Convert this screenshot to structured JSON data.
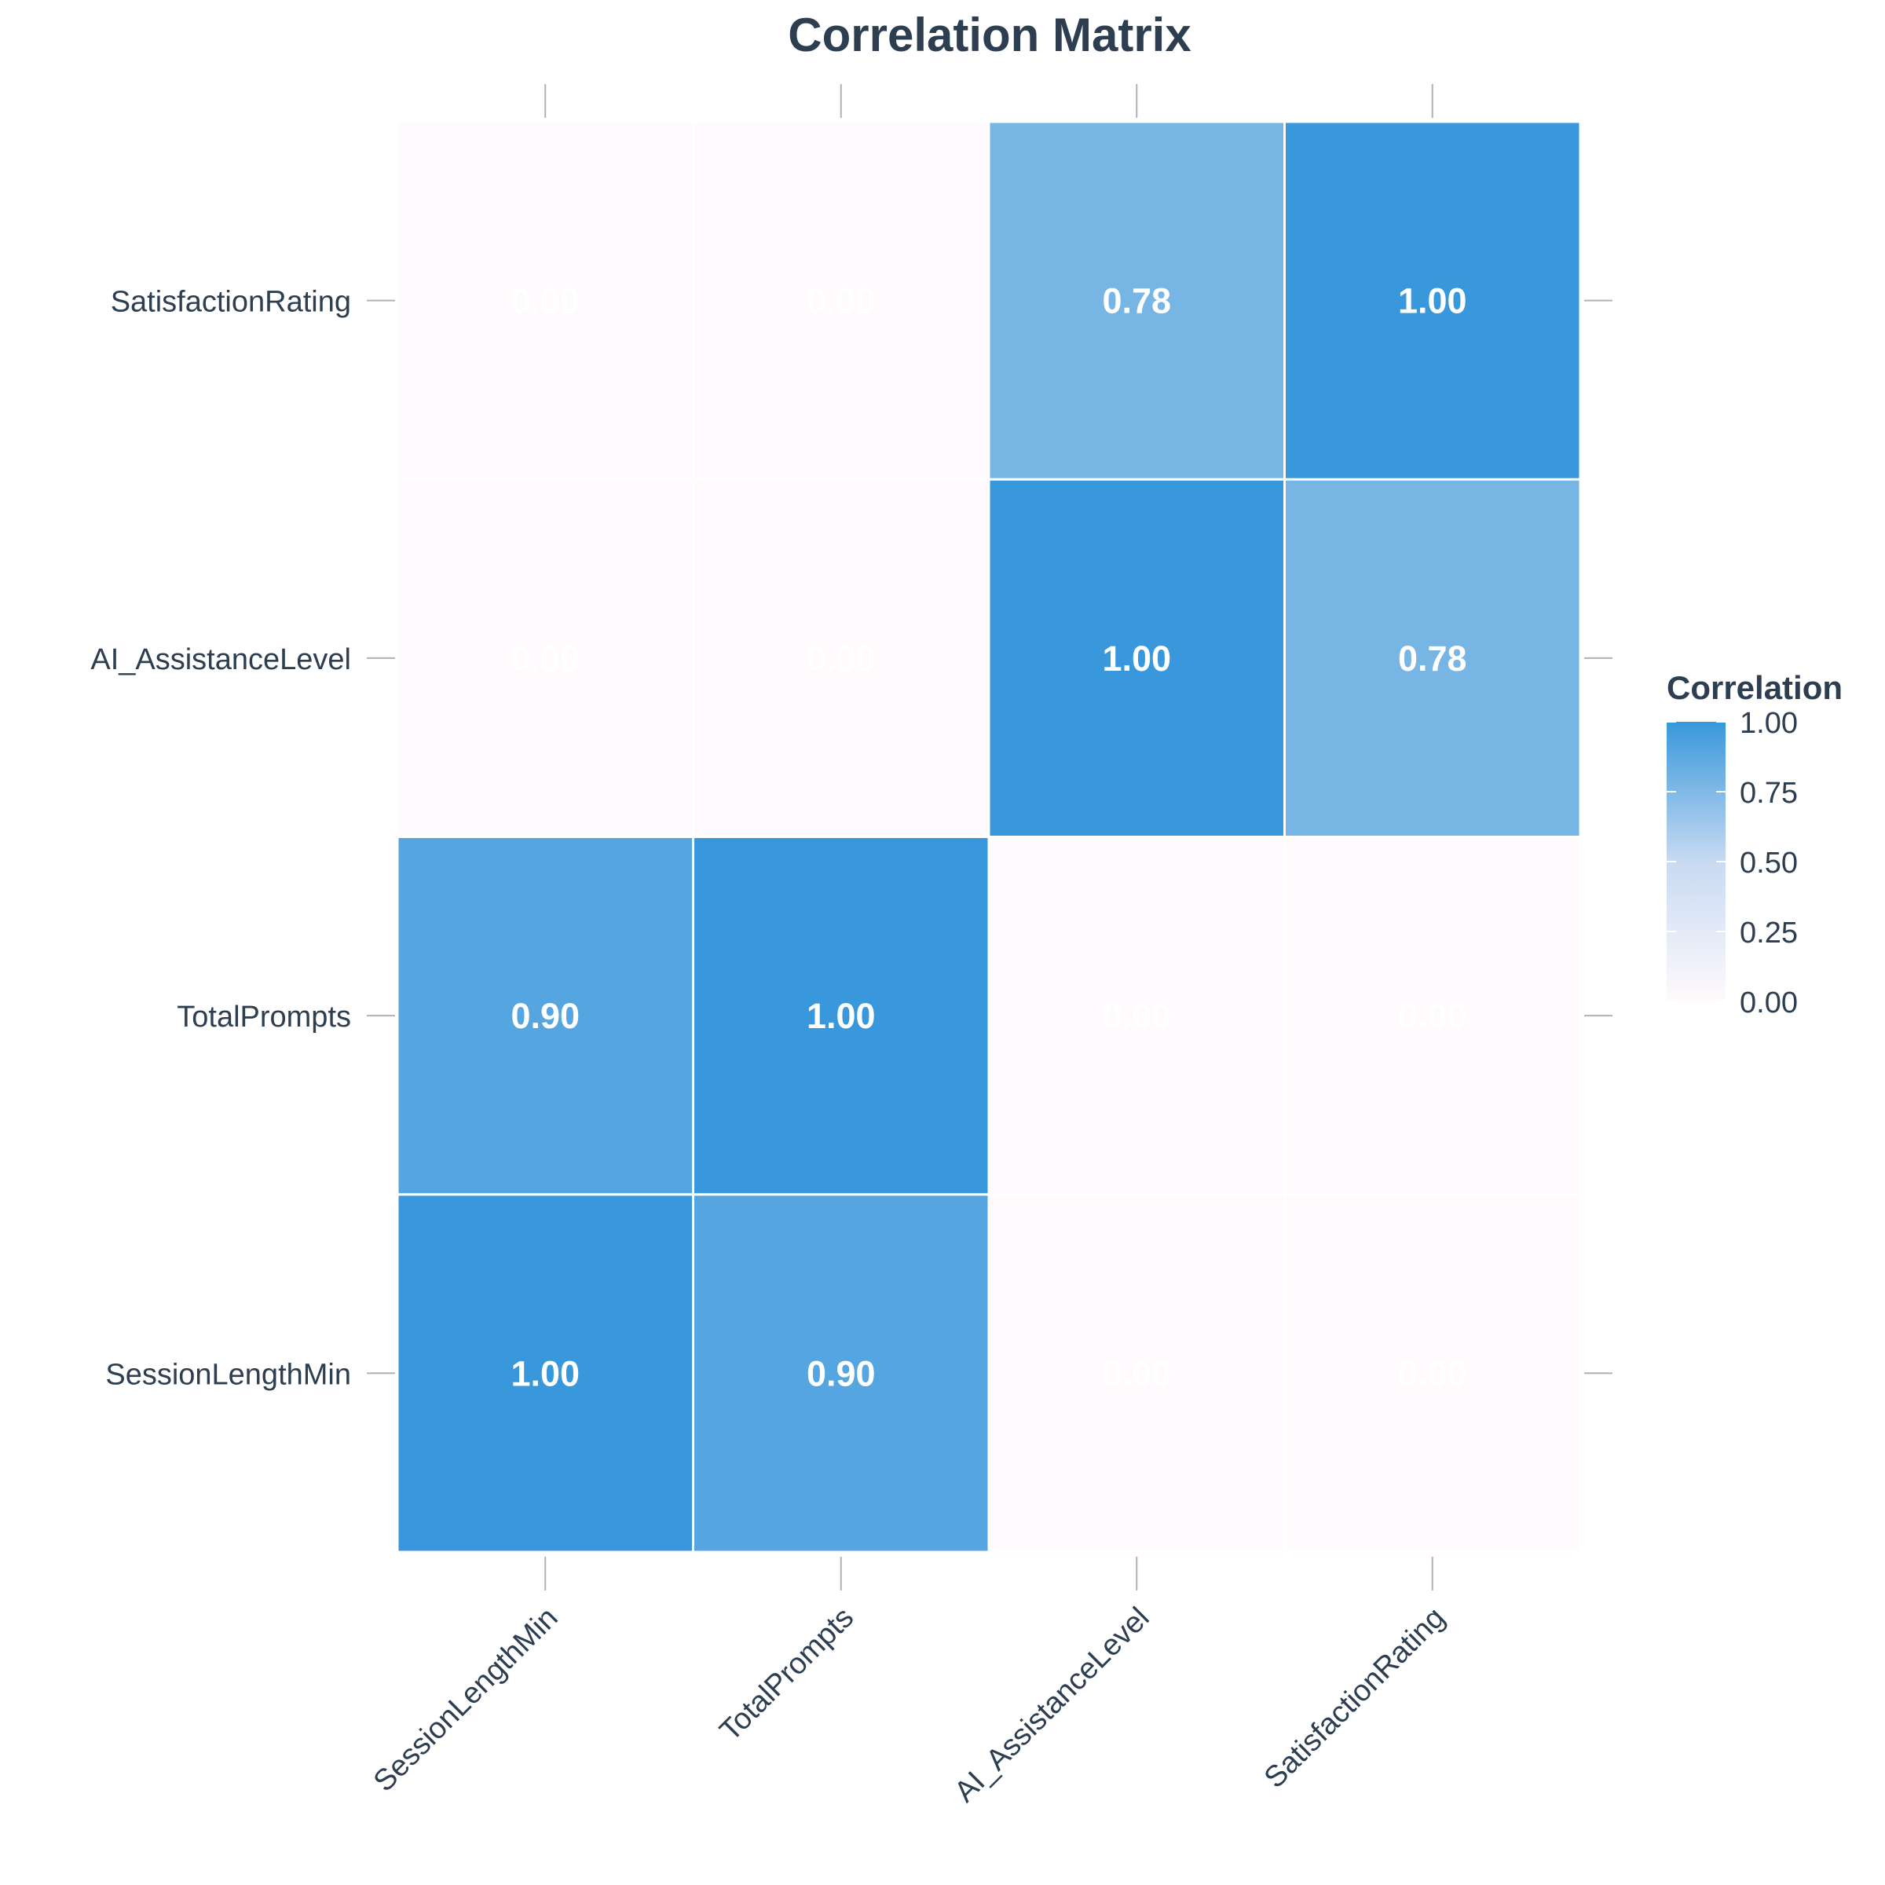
{
  "chart_data": {
    "type": "heatmap",
    "title": "Correlation Matrix",
    "x_categories": [
      "SessionLengthMin",
      "TotalPrompts",
      "AI_AssistanceLevel",
      "SatisfactionRating"
    ],
    "y_categories": [
      "SessionLengthMin",
      "TotalPrompts",
      "AI_AssistanceLevel",
      "SatisfactionRating"
    ],
    "matrix": [
      [
        1.0,
        0.9,
        0.0,
        0.0
      ],
      [
        0.9,
        1.0,
        0.0,
        0.0
      ],
      [
        0.0,
        0.0,
        1.0,
        0.78
      ],
      [
        0.0,
        0.0,
        0.78,
        1.0
      ]
    ],
    "value_format": "0.00",
    "legend": {
      "title": "Correlation",
      "ticks": [
        "0.00",
        "0.25",
        "0.50",
        "0.75",
        "1.00"
      ],
      "range": [
        0,
        1
      ],
      "placement": "right"
    },
    "colors": {
      "low": "#fffafd",
      "mid": "#c8daf2",
      "high": "#3898db",
      "cell_border": "#ffffff",
      "text": "#2c3e50",
      "tick": "#b0b0b0"
    },
    "grid": false
  }
}
